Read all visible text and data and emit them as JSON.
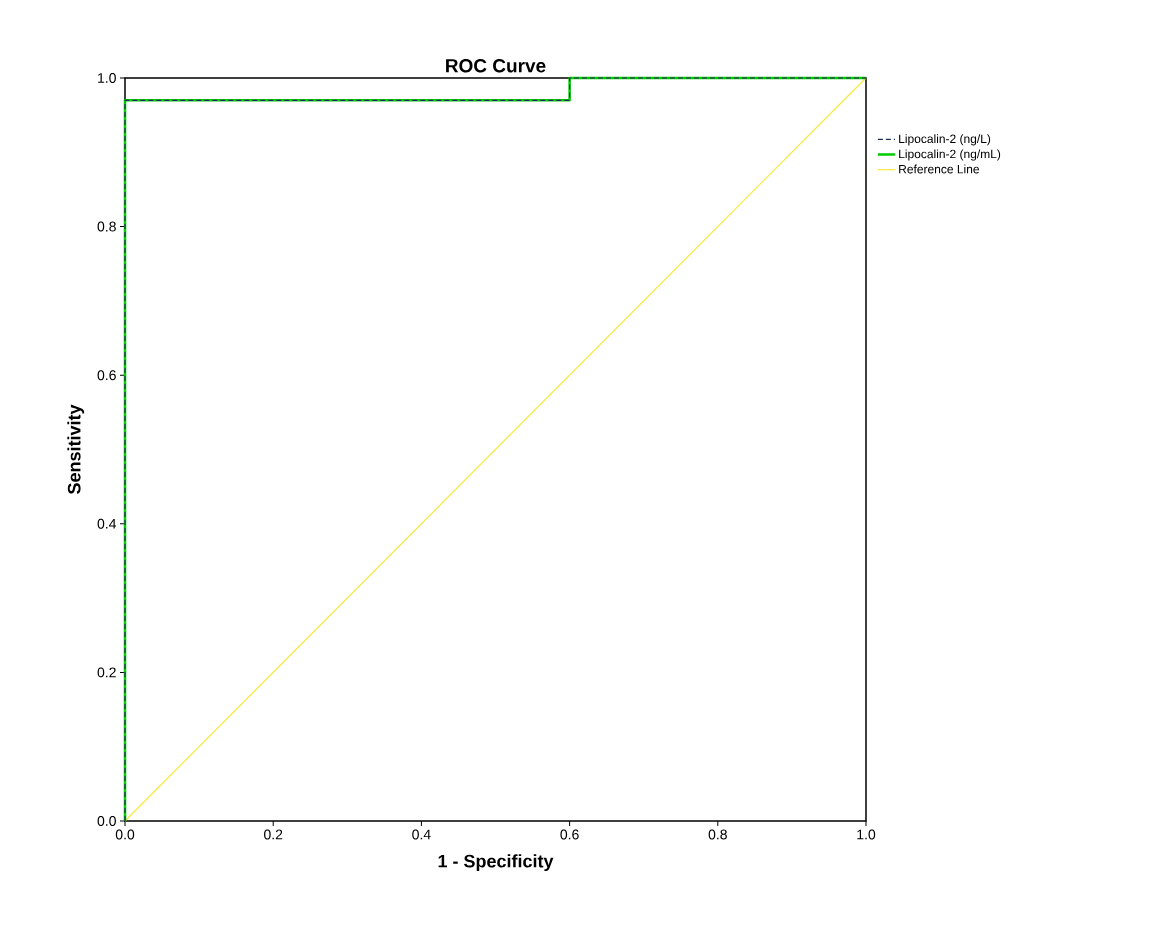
{
  "chart_data": {
    "type": "line",
    "title": "ROC Curve",
    "xlabel": "1 - Specificity",
    "ylabel": "Sensitivity",
    "x": [
      0,
      0,
      0.6,
      0.6,
      1
    ],
    "series": [
      {
        "name": "Lipocalin-2 (ng/L)",
        "color": "#1f2d5a",
        "values": [
          0,
          0.97,
          0.97,
          1,
          1
        ],
        "line_style": "dashed"
      },
      {
        "name": "Lipocalin-2 (ng/mL)",
        "color": "#00cc00",
        "values": [
          0,
          0.97,
          0.97,
          1,
          1
        ]
      },
      {
        "name": "Reference Line",
        "color": "#f5e83a",
        "x": [
          0,
          1
        ],
        "values": [
          0,
          1
        ]
      }
    ],
    "xlim": [
      0,
      1
    ],
    "ylim": [
      0,
      1
    ],
    "xticks": [
      {
        "value": 0,
        "label": "0.0"
      },
      {
        "value": 0.2,
        "label": "0.2"
      },
      {
        "value": 0.4,
        "label": "0.4"
      },
      {
        "value": 0.6,
        "label": "0.6"
      },
      {
        "value": 0.8,
        "label": "0.8"
      },
      {
        "value": 1,
        "label": "1.0"
      }
    ],
    "yticks": [
      {
        "value": 0,
        "label": "0.0"
      },
      {
        "value": 0.2,
        "label": "0.2"
      },
      {
        "value": 0.4,
        "label": "0.4"
      },
      {
        "value": 0.6,
        "label": "0.6"
      },
      {
        "value": 0.8,
        "label": "0.8"
      },
      {
        "value": 1,
        "label": "1.0"
      }
    ],
    "grid": false,
    "legend": "right",
    "marker": "none",
    "line_style": "solid"
  }
}
